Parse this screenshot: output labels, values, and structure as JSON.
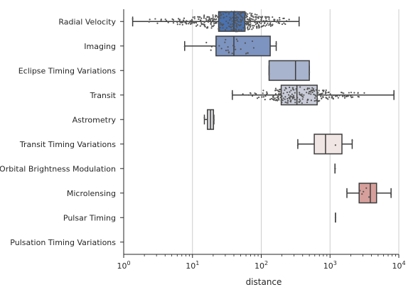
{
  "chart_data": {
    "type": "box",
    "xlabel": "distance",
    "xscale": "log",
    "xlim": [
      1,
      10000
    ],
    "x_ticks": [
      {
        "value": 1,
        "base": "10",
        "exp": "0"
      },
      {
        "value": 10,
        "base": "10",
        "exp": "1"
      },
      {
        "value": 100,
        "base": "10",
        "exp": "2"
      },
      {
        "value": 1000,
        "base": "10",
        "exp": "3"
      },
      {
        "value": 10000,
        "base": "10",
        "exp": "4"
      }
    ],
    "grid": "vertical",
    "categories": [
      "Radial Velocity",
      "Imaging",
      "Eclipse Timing Variations",
      "Transit",
      "Astrometry",
      "Transit Timing Variations",
      "Orbital Brightness Modulation",
      "Microlensing",
      "Pulsar Timing",
      "Pulsation Timing Variations"
    ],
    "boxes": [
      {
        "whisker_low": 1.35,
        "q1": 24,
        "median": 40,
        "q3": 58,
        "whisker_high": 355,
        "color": "#4a72b0"
      },
      {
        "whisker_low": 7.7,
        "q1": 22,
        "median": 40,
        "q3": 135,
        "whisker_high": 165,
        "color": "#7d94c1"
      },
      {
        "whisker_low": 130,
        "q1": 130,
        "median": 315,
        "q3": 500,
        "whisker_high": 500,
        "color": "#a8b3cd"
      },
      {
        "whisker_low": 38,
        "q1": 195,
        "median": 330,
        "q3": 650,
        "whisker_high": 8500,
        "color": "#c9ccd8"
      },
      {
        "whisker_low": 14.9,
        "q1": 16.5,
        "median": 18.3,
        "q3": 20.2,
        "whisker_high": 20.5,
        "color": "#dcdcdf"
      },
      {
        "whisker_low": 340,
        "q1": 590,
        "median": 860,
        "q3": 1490,
        "whisker_high": 2100,
        "color": "#f0e6e4"
      },
      {
        "whisker_low": 1180,
        "q1": 1180,
        "median": 1180,
        "q3": 1180,
        "whisker_high": 1180,
        "color": "#ecd6d3"
      },
      {
        "whisker_low": 1760,
        "q1": 2650,
        "median": 3850,
        "q3": 4750,
        "whisker_high": 7720,
        "color": "#d69f9b"
      },
      {
        "whisker_low": 1200,
        "q1": 1200,
        "median": 1200,
        "q3": 1200,
        "whisker_high": 1200,
        "color": "#c98680"
      },
      {
        "whisker_low": null,
        "q1": null,
        "median": null,
        "q3": null,
        "whisker_high": null,
        "color": "#c06f69"
      }
    ],
    "swarm": [
      {
        "category": "Radial Velocity",
        "count": 360,
        "range": [
          1.35,
          355
        ],
        "center": 40,
        "spread": 0.42
      },
      {
        "category": "Imaging",
        "count": 30,
        "range": [
          7.7,
          165
        ],
        "center": 40,
        "spread": 0.35
      },
      {
        "category": "Eclipse Timing Variations",
        "count": 2,
        "range": [
          130,
          500
        ],
        "center": 300,
        "spread": 0.3
      },
      {
        "category": "Transit",
        "count": 220,
        "range": [
          38,
          8500
        ],
        "center": 330,
        "spread": 0.35
      },
      {
        "category": "Astrometry",
        "count": 2,
        "range": [
          14.9,
          20.5
        ],
        "center": 17.5,
        "spread": 0.1
      },
      {
        "category": "Transit Timing Variations",
        "count": 3,
        "range": [
          340,
          2100
        ],
        "center": 860,
        "spread": 0.3
      },
      {
        "category": "Orbital Brightness Modulation",
        "count": 2,
        "range": [
          1180,
          1190
        ],
        "center": 1185,
        "spread": 0.01
      },
      {
        "category": "Microlensing",
        "count": 7,
        "range": [
          1760,
          7720
        ],
        "center": 3850,
        "spread": 0.25
      },
      {
        "category": "Pulsar Timing",
        "count": 1,
        "range": [
          1200,
          1200
        ],
        "center": 1200,
        "spread": 0.0
      },
      {
        "category": "Pulsation Timing Variations",
        "count": 0,
        "range": [
          1,
          1
        ],
        "center": 1,
        "spread": 0.0
      }
    ]
  }
}
